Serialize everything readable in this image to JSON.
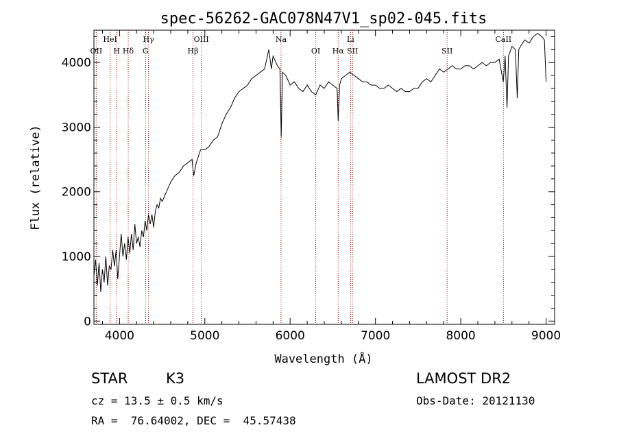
{
  "chart_data": {
    "type": "line",
    "title": "spec-56262-GAC078N47V1_sp02-045.fits",
    "xlabel": "Wavelength (Å)",
    "ylabel": "Flux (relative)",
    "xlim": [
      3700,
      9100
    ],
    "ylim": [
      -50,
      4500
    ],
    "x_ticks": [
      4000,
      5000,
      6000,
      7000,
      8000,
      9000
    ],
    "y_ticks": [
      0,
      1000,
      2000,
      3000,
      4000
    ],
    "grid": false,
    "series": [
      {
        "points": [
          [
            3700,
            700
          ],
          [
            3720,
            950
          ],
          [
            3740,
            550
          ],
          [
            3760,
            900
          ],
          [
            3780,
            450
          ],
          [
            3800,
            800
          ],
          [
            3820,
            600
          ],
          [
            3840,
            1000
          ],
          [
            3860,
            550
          ],
          [
            3880,
            850
          ],
          [
            3900,
            800
          ],
          [
            3920,
            1100
          ],
          [
            3940,
            850
          ],
          [
            3960,
            1100
          ],
          [
            3980,
            650
          ],
          [
            4000,
            1000
          ],
          [
            4020,
            1350
          ],
          [
            4040,
            1000
          ],
          [
            4060,
            1200
          ],
          [
            4080,
            950
          ],
          [
            4100,
            1300
          ],
          [
            4120,
            1050
          ],
          [
            4140,
            1350
          ],
          [
            4160,
            1100
          ],
          [
            4180,
            1500
          ],
          [
            4200,
            1200
          ],
          [
            4220,
            1300
          ],
          [
            4240,
            1150
          ],
          [
            4260,
            1400
          ],
          [
            4280,
            1300
          ],
          [
            4300,
            1550
          ],
          [
            4320,
            1400
          ],
          [
            4340,
            1650
          ],
          [
            4360,
            1500
          ],
          [
            4380,
            1650
          ],
          [
            4400,
            1450
          ],
          [
            4420,
            1700
          ],
          [
            4440,
            1800
          ],
          [
            4460,
            1750
          ],
          [
            4480,
            1900
          ],
          [
            4500,
            1850
          ],
          [
            4550,
            2000
          ],
          [
            4600,
            2150
          ],
          [
            4650,
            2250
          ],
          [
            4700,
            2300
          ],
          [
            4750,
            2400
          ],
          [
            4800,
            2450
          ],
          [
            4850,
            2500
          ],
          [
            4870,
            2250
          ],
          [
            4900,
            2450
          ],
          [
            4950,
            2650
          ],
          [
            5000,
            2650
          ],
          [
            5050,
            2700
          ],
          [
            5100,
            2800
          ],
          [
            5150,
            2850
          ],
          [
            5200,
            3050
          ],
          [
            5250,
            3200
          ],
          [
            5300,
            3300
          ],
          [
            5350,
            3450
          ],
          [
            5400,
            3550
          ],
          [
            5450,
            3600
          ],
          [
            5500,
            3650
          ],
          [
            5550,
            3750
          ],
          [
            5600,
            3800
          ],
          [
            5650,
            3850
          ],
          [
            5700,
            3900
          ],
          [
            5750,
            4200
          ],
          [
            5780,
            3900
          ],
          [
            5800,
            4100
          ],
          [
            5850,
            3950
          ],
          [
            5880,
            3900
          ],
          [
            5895,
            2850
          ],
          [
            5910,
            3850
          ],
          [
            5950,
            3800
          ],
          [
            6000,
            3650
          ],
          [
            6050,
            3700
          ],
          [
            6100,
            3600
          ],
          [
            6150,
            3550
          ],
          [
            6200,
            3650
          ],
          [
            6250,
            3550
          ],
          [
            6300,
            3500
          ],
          [
            6350,
            3650
          ],
          [
            6400,
            3600
          ],
          [
            6450,
            3700
          ],
          [
            6500,
            3650
          ],
          [
            6550,
            3600
          ],
          [
            6563,
            3100
          ],
          [
            6580,
            3650
          ],
          [
            6600,
            3750
          ],
          [
            6650,
            3800
          ],
          [
            6700,
            3850
          ],
          [
            6750,
            3800
          ],
          [
            6800,
            3750
          ],
          [
            6850,
            3700
          ],
          [
            6900,
            3700
          ],
          [
            6950,
            3650
          ],
          [
            7000,
            3650
          ],
          [
            7050,
            3600
          ],
          [
            7100,
            3600
          ],
          [
            7150,
            3650
          ],
          [
            7200,
            3600
          ],
          [
            7250,
            3550
          ],
          [
            7300,
            3600
          ],
          [
            7350,
            3550
          ],
          [
            7400,
            3550
          ],
          [
            7450,
            3600
          ],
          [
            7500,
            3600
          ],
          [
            7550,
            3700
          ],
          [
            7600,
            3750
          ],
          [
            7650,
            3700
          ],
          [
            7700,
            3800
          ],
          [
            7750,
            3900
          ],
          [
            7800,
            3850
          ],
          [
            7850,
            3900
          ],
          [
            7900,
            3950
          ],
          [
            7950,
            3900
          ],
          [
            8000,
            3900
          ],
          [
            8050,
            3950
          ],
          [
            8100,
            3950
          ],
          [
            8150,
            3900
          ],
          [
            8200,
            3950
          ],
          [
            8250,
            4000
          ],
          [
            8300,
            3950
          ],
          [
            8350,
            4000
          ],
          [
            8400,
            4000
          ],
          [
            8450,
            4050
          ],
          [
            8498,
            3700
          ],
          [
            8520,
            4100
          ],
          [
            8542,
            3300
          ],
          [
            8560,
            4100
          ],
          [
            8600,
            4250
          ],
          [
            8640,
            4200
          ],
          [
            8662,
            3450
          ],
          [
            8680,
            4200
          ],
          [
            8700,
            4250
          ],
          [
            8750,
            4350
          ],
          [
            8800,
            4300
          ],
          [
            8850,
            4400
          ],
          [
            8900,
            4450
          ],
          [
            8950,
            4400
          ],
          [
            8980,
            4350
          ],
          [
            9000,
            3700
          ]
        ]
      }
    ],
    "lines": [
      {
        "wl": 3727,
        "label": "OII",
        "row": 2
      },
      {
        "wl": 3890,
        "label": "HeI",
        "row": 1
      },
      {
        "wl": 3968,
        "label": "H",
        "row": 2
      },
      {
        "wl": 4102,
        "label": "Hδ",
        "row": 2
      },
      {
        "wl": 4305,
        "label": "G",
        "row": 2
      },
      {
        "wl": 4340,
        "label": "Hγ",
        "row": 1
      },
      {
        "wl": 4861,
        "label": "Hβ",
        "row": 2
      },
      {
        "wl": 4959,
        "label": "OIII",
        "row": 1
      },
      {
        "wl": 5893,
        "label": "Na",
        "row": 1
      },
      {
        "wl": 6300,
        "label": "OI",
        "row": 2
      },
      {
        "wl": 6563,
        "label": "Hα",
        "row": 2
      },
      {
        "wl": 6708,
        "label": "Li",
        "row": 1
      },
      {
        "wl": 6731,
        "label": "SII",
        "row": 2
      },
      {
        "wl": 7840,
        "label": "SII",
        "row": 2
      },
      {
        "wl": 8500,
        "label": "CaII",
        "row": 1
      }
    ],
    "line_color": "#8b0000"
  },
  "footer": {
    "class_label": "STAR",
    "subclass_label": "K3",
    "survey": "LAMOST DR2",
    "redshift": "cz = 13.5 ± 0.5 km/s",
    "obs_date": "Obs-Date: 20121130",
    "coords": "RA =  76.64002, DEC =  45.57438"
  }
}
